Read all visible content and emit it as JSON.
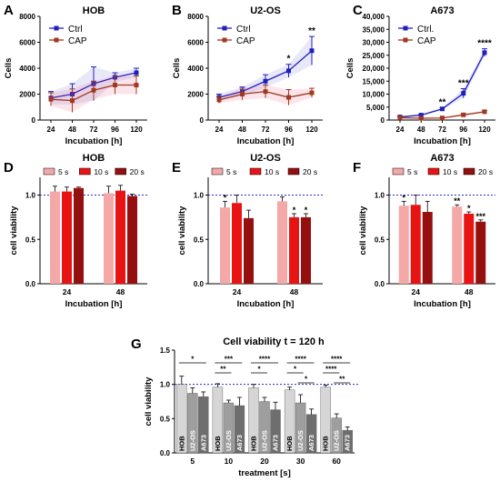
{
  "chart_data": [
    {
      "panel": "A",
      "type": "line",
      "title": "HOB",
      "xlabel": "Incubation [h]",
      "ylabel": "Cells",
      "x": [
        24,
        48,
        72,
        96,
        120
      ],
      "ylim": [
        0,
        8000
      ],
      "yticks": [
        "0",
        "2000",
        "4000",
        "6000",
        "8000"
      ],
      "legend_position": "top-left",
      "series": [
        {
          "name": "Ctrl",
          "color": "#1f1fbf",
          "marker": "square",
          "values": [
            1700,
            2000,
            2800,
            3300,
            3650
          ],
          "errors": [
            500,
            800,
            1300,
            350,
            350
          ]
        },
        {
          "name": "CAP",
          "color": "#a0391f",
          "marker": "square",
          "values": [
            1600,
            1500,
            2300,
            2700,
            2700
          ],
          "errors": [
            500,
            900,
            700,
            700,
            700
          ]
        }
      ],
      "annotations": []
    },
    {
      "panel": "B",
      "type": "line",
      "title": "U2-OS",
      "xlabel": "Incubation [h]",
      "ylabel": "Cells",
      "x": [
        24,
        48,
        72,
        96,
        120
      ],
      "ylim": [
        0,
        8000
      ],
      "yticks": [
        "0",
        "2000",
        "4000",
        "6000",
        "8000"
      ],
      "legend_position": "top-left",
      "series": [
        {
          "name": "Ctrl",
          "color": "#1f1fbf",
          "marker": "square",
          "values": [
            1750,
            2200,
            3000,
            3800,
            5350
          ],
          "errors": [
            250,
            350,
            500,
            500,
            1100
          ]
        },
        {
          "name": "CAP",
          "color": "#a0391f",
          "marker": "square",
          "values": [
            1550,
            2000,
            2200,
            1750,
            2100
          ],
          "errors": [
            250,
            450,
            500,
            600,
            350
          ]
        }
      ],
      "annotations": [
        {
          "x": 96,
          "text": "*"
        },
        {
          "x": 120,
          "text": "**"
        }
      ]
    },
    {
      "panel": "C",
      "type": "line",
      "title": "A673",
      "xlabel": "Incubation [h]",
      "ylabel": "Cells",
      "x": [
        24,
        48,
        72,
        96,
        120
      ],
      "ylim": [
        0,
        40000
      ],
      "yticks": [
        "0",
        "5,000",
        "10,000",
        "15,000",
        "20,000",
        "25,000",
        "30,000",
        "35,000",
        "40,000"
      ],
      "legend_position": "top-left",
      "series": [
        {
          "name": "Ctrl.",
          "color": "#1f1fbf",
          "marker": "square",
          "values": [
            1200,
            1900,
            4300,
            10300,
            26000
          ],
          "errors": [
            300,
            400,
            500,
            1800,
            1500
          ]
        },
        {
          "name": "CAP",
          "color": "#a0391f",
          "marker": "square",
          "values": [
            900,
            700,
            800,
            2000,
            3200
          ],
          "errors": [
            200,
            200,
            200,
            500,
            500
          ]
        }
      ],
      "annotations": [
        {
          "x": 72,
          "text": "**"
        },
        {
          "x": 96,
          "text": "***"
        },
        {
          "x": 120,
          "text": "****"
        }
      ]
    },
    {
      "panel": "D",
      "type": "bar",
      "title": "HOB",
      "xlabel": "Incubation [h]",
      "ylabel": "cell viability",
      "categories": [
        "24",
        "48"
      ],
      "ylim": [
        0,
        1.2
      ],
      "yticks": [
        "0.0",
        "0.5",
        "1.0"
      ],
      "reference_line": 1.0,
      "legend_position": "top",
      "series": [
        {
          "name": "5 s",
          "color": "#f4a8a8",
          "values": [
            1.04,
            1.02
          ],
          "errors": [
            0.06,
            0.08
          ],
          "stars": [
            "",
            ""
          ]
        },
        {
          "name": "10 s",
          "color": "#e81414",
          "values": [
            1.04,
            1.05
          ],
          "errors": [
            0.05,
            0.06
          ],
          "stars": [
            "",
            ""
          ]
        },
        {
          "name": "20 s",
          "color": "#960f0f",
          "values": [
            1.08,
            0.99
          ],
          "errors": [
            0.01,
            0.02
          ],
          "stars": [
            "",
            ""
          ]
        }
      ]
    },
    {
      "panel": "E",
      "type": "bar",
      "title": "U2-OS",
      "xlabel": "Incubation [h]",
      "ylabel": "cell viability",
      "categories": [
        "24",
        "48"
      ],
      "ylim": [
        0,
        1.2
      ],
      "yticks": [
        "0.0",
        "0.5",
        "1.0"
      ],
      "reference_line": 1.0,
      "legend_position": "top",
      "series": [
        {
          "name": "5 s",
          "color": "#f4a8a8",
          "values": [
            0.86,
            0.93
          ],
          "errors": [
            0.07,
            0.05
          ],
          "stars": [
            "*",
            ""
          ]
        },
        {
          "name": "10 s",
          "color": "#e81414",
          "values": [
            0.91,
            0.75
          ],
          "errors": [
            0.09,
            0.04
          ],
          "stars": [
            "",
            "*"
          ]
        },
        {
          "name": "20 s",
          "color": "#960f0f",
          "values": [
            0.74,
            0.75
          ],
          "errors": [
            0.09,
            0.04
          ],
          "stars": [
            "",
            "*"
          ]
        }
      ]
    },
    {
      "panel": "F",
      "type": "bar",
      "title": "A673",
      "xlabel": "Incubation [h]",
      "ylabel": "cell viability",
      "categories": [
        "24",
        "48"
      ],
      "ylim": [
        0,
        1.2
      ],
      "yticks": [
        "0.0",
        "0.5",
        "1.0"
      ],
      "reference_line": 1.0,
      "legend_position": "top",
      "series": [
        {
          "name": "5 s",
          "color": "#f4a8a8",
          "values": [
            0.88,
            0.87
          ],
          "errors": [
            0.05,
            0.02
          ],
          "stars": [
            "*",
            "**"
          ]
        },
        {
          "name": "10 s",
          "color": "#e81414",
          "values": [
            0.89,
            0.79
          ],
          "errors": [
            0.11,
            0.02
          ],
          "stars": [
            "",
            "*"
          ]
        },
        {
          "name": "20 s",
          "color": "#960f0f",
          "values": [
            0.81,
            0.7
          ],
          "errors": [
            0.12,
            0.02
          ],
          "stars": [
            "",
            "***"
          ]
        }
      ]
    },
    {
      "panel": "G",
      "type": "bar",
      "title": "Cell viability t = 120 h",
      "xlabel": "treatment [s]",
      "ylabel": "cell viability",
      "categories": [
        "5",
        "10",
        "20",
        "30",
        "60"
      ],
      "ylim": [
        0,
        1.5
      ],
      "yticks": [
        "0.0",
        "0.5",
        "1.0",
        "1.5"
      ],
      "reference_line": 1.0,
      "bar_labels": [
        "HOB",
        "U2-OS",
        "A673"
      ],
      "series": [
        {
          "name": "HOB",
          "color": "#d6d6d6",
          "values": [
            1.0,
            0.96,
            0.95,
            0.92,
            0.96
          ],
          "errors": [
            0.12,
            0.05,
            0.05,
            0.04,
            0.03
          ]
        },
        {
          "name": "U2-OS",
          "color": "#9e9e9e",
          "values": [
            0.87,
            0.73,
            0.75,
            0.73,
            0.51
          ],
          "errors": [
            0.08,
            0.04,
            0.06,
            0.12,
            0.06
          ]
        },
        {
          "name": "A673",
          "color": "#6e6e6e",
          "values": [
            0.82,
            0.69,
            0.63,
            0.56,
            0.33
          ],
          "errors": [
            0.07,
            0.12,
            0.11,
            0.08,
            0.05
          ]
        }
      ],
      "brackets": [
        {
          "group": 0,
          "levels": [
            {
              "from": 0,
              "to": 2,
              "text": "*"
            }
          ]
        },
        {
          "group": 1,
          "levels": [
            {
              "from": 0,
              "to": 2,
              "text": "***"
            },
            {
              "from": 0,
              "to": 1,
              "text": "**"
            }
          ]
        },
        {
          "group": 2,
          "levels": [
            {
              "from": 0,
              "to": 2,
              "text": "****"
            },
            {
              "from": 0,
              "to": 1,
              "text": "*"
            }
          ]
        },
        {
          "group": 3,
          "levels": [
            {
              "from": 0,
              "to": 2,
              "text": "****"
            },
            {
              "from": 0,
              "to": 1,
              "text": "*"
            },
            {
              "from": 1,
              "to": 2,
              "text": "*"
            }
          ]
        },
        {
          "group": 4,
          "levels": [
            {
              "from": 0,
              "to": 2,
              "text": "****"
            },
            {
              "from": 0,
              "to": 1,
              "text": "****"
            },
            {
              "from": 1,
              "to": 2,
              "text": "**"
            }
          ]
        }
      ]
    }
  ]
}
